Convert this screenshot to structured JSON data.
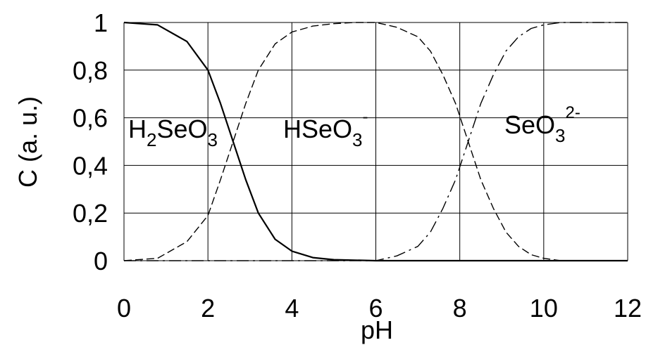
{
  "chart_data": {
    "type": "line",
    "xlabel": "pH",
    "ylabel": "C (a. u.)",
    "xlim": [
      0,
      12
    ],
    "ylim": [
      0,
      1
    ],
    "x_ticks": [
      "0",
      "2",
      "4",
      "6",
      "8",
      "10",
      "12"
    ],
    "y_ticks": [
      "0",
      "0,2",
      "0,4",
      "0,6",
      "0,8",
      "1"
    ],
    "grid": true,
    "legend": "none",
    "species_labels": [
      {
        "base": "H",
        "sub1": "2",
        "mid": "SeO",
        "sub2": "3",
        "sup": ""
      },
      {
        "base": "HSeO",
        "sub1": "3",
        "mid": "",
        "sub2": "",
        "sup": "-"
      },
      {
        "base": "SeO",
        "sub1": "3",
        "mid": "",
        "sub2": "",
        "sup": "2-"
      }
    ],
    "series": [
      {
        "name": "H2SeO3",
        "line_style": "solid",
        "x": [
          0,
          0.8,
          1.0,
          1.5,
          2.0,
          2.3,
          2.6,
          2.9,
          3.2,
          3.6,
          4.0,
          4.5,
          5.0,
          6.0,
          8.0,
          12.0
        ],
        "y": [
          1.0,
          0.99,
          0.97,
          0.92,
          0.8,
          0.66,
          0.5,
          0.34,
          0.2,
          0.09,
          0.04,
          0.013,
          0.004,
          0.0,
          0.0,
          0.0
        ]
      },
      {
        "name": "HSeO3-",
        "line_style": "dashed",
        "x": [
          0,
          0.8,
          1.0,
          1.5,
          2.0,
          2.3,
          2.6,
          2.9,
          3.2,
          3.6,
          4.0,
          4.5,
          5.0,
          5.5,
          6.0,
          6.5,
          7.0,
          7.3,
          7.6,
          7.9,
          8.2,
          8.5,
          8.8,
          9.1,
          9.4,
          9.7,
          10.0,
          10.4,
          11.0,
          12.0
        ],
        "y": [
          0.0,
          0.01,
          0.03,
          0.08,
          0.19,
          0.34,
          0.5,
          0.66,
          0.8,
          0.91,
          0.96,
          0.985,
          0.995,
          1.0,
          1.0,
          0.98,
          0.94,
          0.88,
          0.78,
          0.66,
          0.5,
          0.34,
          0.22,
          0.12,
          0.06,
          0.025,
          0.01,
          0.0,
          0.0,
          0.0
        ]
      },
      {
        "name": "SeO3^2-",
        "line_style": "dash-dot",
        "x": [
          0,
          6.0,
          6.5,
          7.0,
          7.3,
          7.6,
          7.9,
          8.2,
          8.5,
          8.8,
          9.1,
          9.4,
          9.7,
          10.0,
          10.4,
          11.0,
          12.0
        ],
        "y": [
          0.0,
          0.0,
          0.02,
          0.06,
          0.12,
          0.22,
          0.34,
          0.5,
          0.66,
          0.78,
          0.88,
          0.94,
          0.975,
          0.99,
          1.0,
          1.0,
          1.0
        ]
      }
    ]
  }
}
